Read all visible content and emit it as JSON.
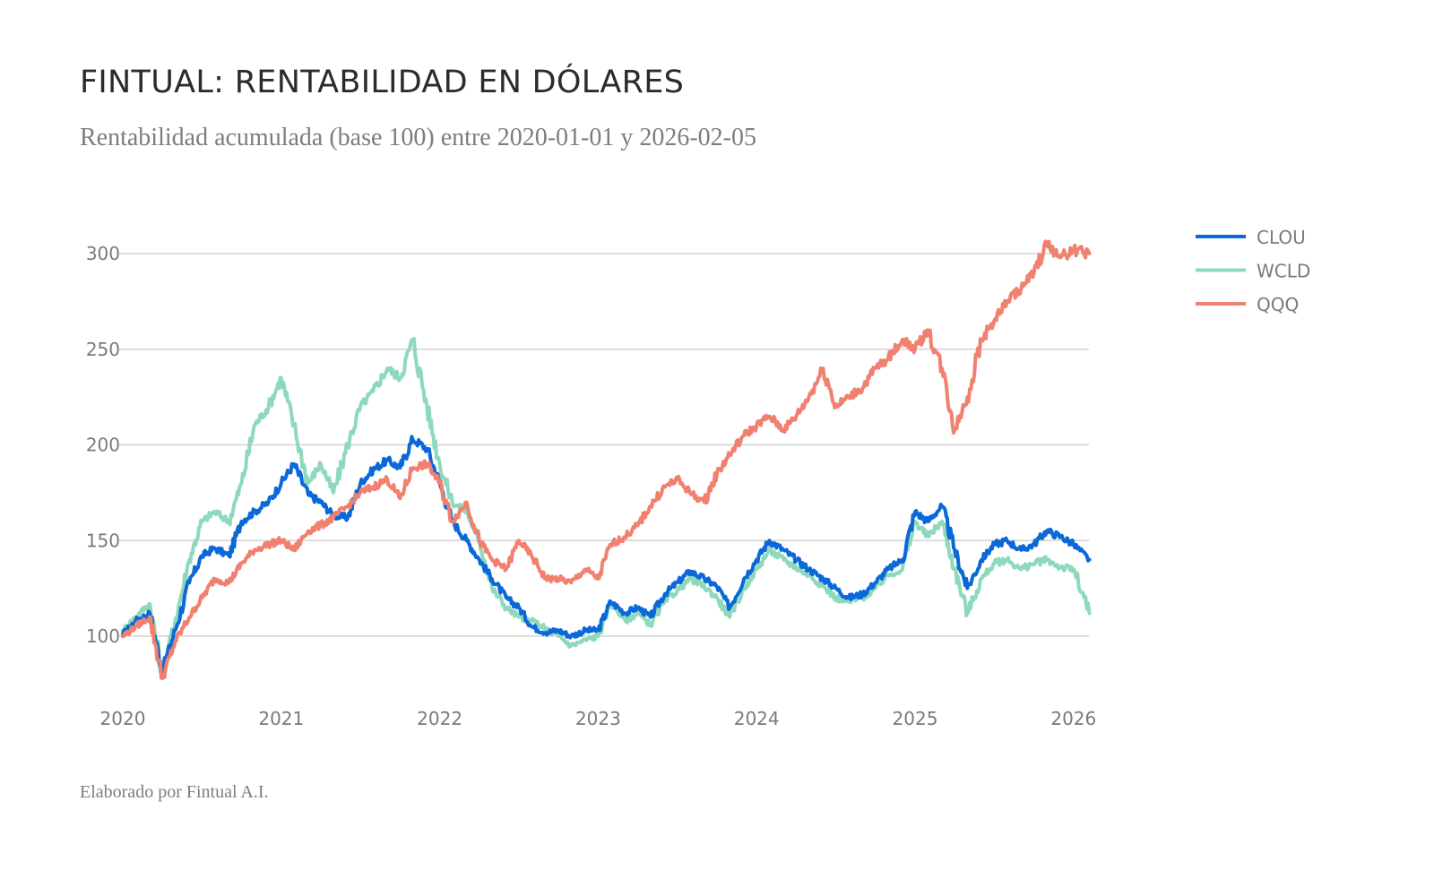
{
  "header": {
    "title": "FINTUAL: RENTABILIDAD EN DÓLARES",
    "subtitle": "Rentabilidad acumulada (base 100) entre 2020-01-01 y 2026-02-05"
  },
  "footer": {
    "credit": "Elaborado por Fintual A.I."
  },
  "chart_data": {
    "type": "line",
    "title": "FINTUAL: RENTABILIDAD EN DÓLARES",
    "subtitle": "Rentabilidad acumulada (base 100) entre 2020-01-01 y 2026-02-05",
    "xlabel": "",
    "ylabel": "",
    "xlim": [
      2020.0,
      2026.1
    ],
    "ylim": [
      70,
      315
    ],
    "yticks": [
      100,
      150,
      200,
      250,
      300
    ],
    "xticks": [
      2020,
      2021,
      2022,
      2023,
      2024,
      2025,
      2026
    ],
    "xtick_labels": [
      "2020",
      "2021",
      "2022",
      "2023",
      "2024",
      "2025",
      "2026"
    ],
    "grid": "horizontal",
    "legend_position": "top-right",
    "x": [
      2020.0,
      2020.08,
      2020.17,
      2020.25,
      2020.33,
      2020.42,
      2020.5,
      2020.58,
      2020.67,
      2020.75,
      2020.83,
      2020.92,
      2021.0,
      2021.08,
      2021.17,
      2021.25,
      2021.33,
      2021.42,
      2021.5,
      2021.58,
      2021.67,
      2021.75,
      2021.83,
      2021.92,
      2022.0,
      2022.08,
      2022.17,
      2022.25,
      2022.33,
      2022.42,
      2022.5,
      2022.58,
      2022.67,
      2022.75,
      2022.83,
      2022.92,
      2023.0,
      2023.08,
      2023.17,
      2023.25,
      2023.33,
      2023.42,
      2023.5,
      2023.58,
      2023.67,
      2023.75,
      2023.83,
      2023.92,
      2024.0,
      2024.08,
      2024.17,
      2024.25,
      2024.33,
      2024.42,
      2024.5,
      2024.58,
      2024.67,
      2024.75,
      2024.83,
      2024.92,
      2025.0,
      2025.08,
      2025.17,
      2025.25,
      2025.33,
      2025.42,
      2025.5,
      2025.58,
      2025.67,
      2025.75,
      2025.83,
      2025.92,
      2026.0,
      2026.1
    ],
    "series": [
      {
        "name": "CLOU",
        "color": "#0a68d8",
        "values": [
          101,
          108,
          112,
          82,
          103,
          128,
          142,
          146,
          142,
          160,
          165,
          170,
          180,
          190,
          174,
          170,
          163,
          162,
          180,
          187,
          192,
          188,
          203,
          198,
          180,
          160,
          150,
          140,
          130,
          120,
          115,
          105,
          102,
          103,
          100,
          103,
          103,
          118,
          112,
          115,
          110,
          122,
          128,
          134,
          130,
          126,
          115,
          130,
          140,
          150,
          145,
          140,
          135,
          130,
          125,
          120,
          122,
          128,
          135,
          140,
          165,
          160,
          168,
          145,
          125,
          140,
          148,
          150,
          145,
          148,
          155,
          152,
          148,
          140
        ]
      },
      {
        "name": "WCLD",
        "color": "#8ed9bc",
        "values": [
          103,
          110,
          117,
          80,
          108,
          140,
          160,
          165,
          160,
          180,
          210,
          220,
          235,
          210,
          180,
          190,
          175,
          200,
          220,
          228,
          240,
          235,
          255,
          220,
          190,
          170,
          165,
          150,
          125,
          115,
          110,
          108,
          104,
          100,
          95,
          98,
          100,
          118,
          108,
          112,
          106,
          118,
          124,
          130,
          126,
          120,
          110,
          125,
          135,
          145,
          140,
          136,
          132,
          126,
          120,
          118,
          120,
          125,
          132,
          135,
          160,
          152,
          160,
          135,
          112,
          130,
          138,
          140,
          135,
          138,
          140,
          136,
          135,
          112
        ]
      },
      {
        "name": "QQQ",
        "color": "#f0806f",
        "values": [
          100,
          105,
          110,
          78,
          97,
          110,
          120,
          130,
          128,
          138,
          145,
          148,
          150,
          145,
          155,
          158,
          162,
          168,
          175,
          178,
          182,
          172,
          188,
          190,
          180,
          160,
          170,
          150,
          140,
          135,
          150,
          142,
          130,
          130,
          128,
          135,
          130,
          148,
          152,
          158,
          168,
          178,
          182,
          175,
          170,
          185,
          195,
          205,
          210,
          215,
          208,
          215,
          225,
          240,
          220,
          225,
          230,
          240,
          245,
          255,
          250,
          260,
          240,
          208,
          225,
          255,
          265,
          275,
          282,
          290,
          305,
          298,
          302,
          300
        ]
      }
    ]
  }
}
